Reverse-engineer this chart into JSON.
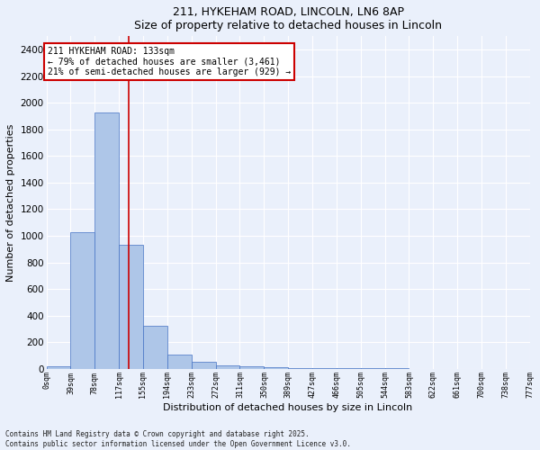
{
  "title_line1": "211, HYKEHAM ROAD, LINCOLN, LN6 8AP",
  "title_line2": "Size of property relative to detached houses in Lincoln",
  "xlabel": "Distribution of detached houses by size in Lincoln",
  "ylabel": "Number of detached properties",
  "bin_edges": [
    0,
    39,
    78,
    117,
    155,
    194,
    233,
    272,
    311,
    350,
    389,
    427,
    466,
    505,
    544,
    583,
    622,
    661,
    700,
    738,
    777
  ],
  "bar_heights": [
    20,
    1030,
    1930,
    930,
    320,
    105,
    50,
    25,
    20,
    15,
    8,
    5,
    3,
    2,
    2,
    1,
    1,
    0,
    0,
    0
  ],
  "bar_color": "#aec6e8",
  "bar_edge_color": "#4472c4",
  "background_color": "#eaf0fb",
  "grid_color": "#ffffff",
  "vline_x": 133,
  "vline_color": "#cc0000",
  "annotation_title": "211 HYKEHAM ROAD: 133sqm",
  "annotation_line1": "← 79% of detached houses are smaller (3,461)",
  "annotation_line2": "21% of semi-detached houses are larger (929) →",
  "annotation_box_color": "#ffffff",
  "annotation_box_edge_color": "#cc0000",
  "ylim": [
    0,
    2500
  ],
  "yticks": [
    0,
    200,
    400,
    600,
    800,
    1000,
    1200,
    1400,
    1600,
    1800,
    2000,
    2200,
    2400
  ],
  "footer_line1": "Contains HM Land Registry data © Crown copyright and database right 2025.",
  "footer_line2": "Contains public sector information licensed under the Open Government Licence v3.0.",
  "tick_labels": [
    "0sqm",
    "39sqm",
    "78sqm",
    "117sqm",
    "155sqm",
    "194sqm",
    "233sqm",
    "272sqm",
    "311sqm",
    "350sqm",
    "389sqm",
    "427sqm",
    "466sqm",
    "505sqm",
    "544sqm",
    "583sqm",
    "622sqm",
    "661sqm",
    "700sqm",
    "738sqm",
    "777sqm"
  ]
}
